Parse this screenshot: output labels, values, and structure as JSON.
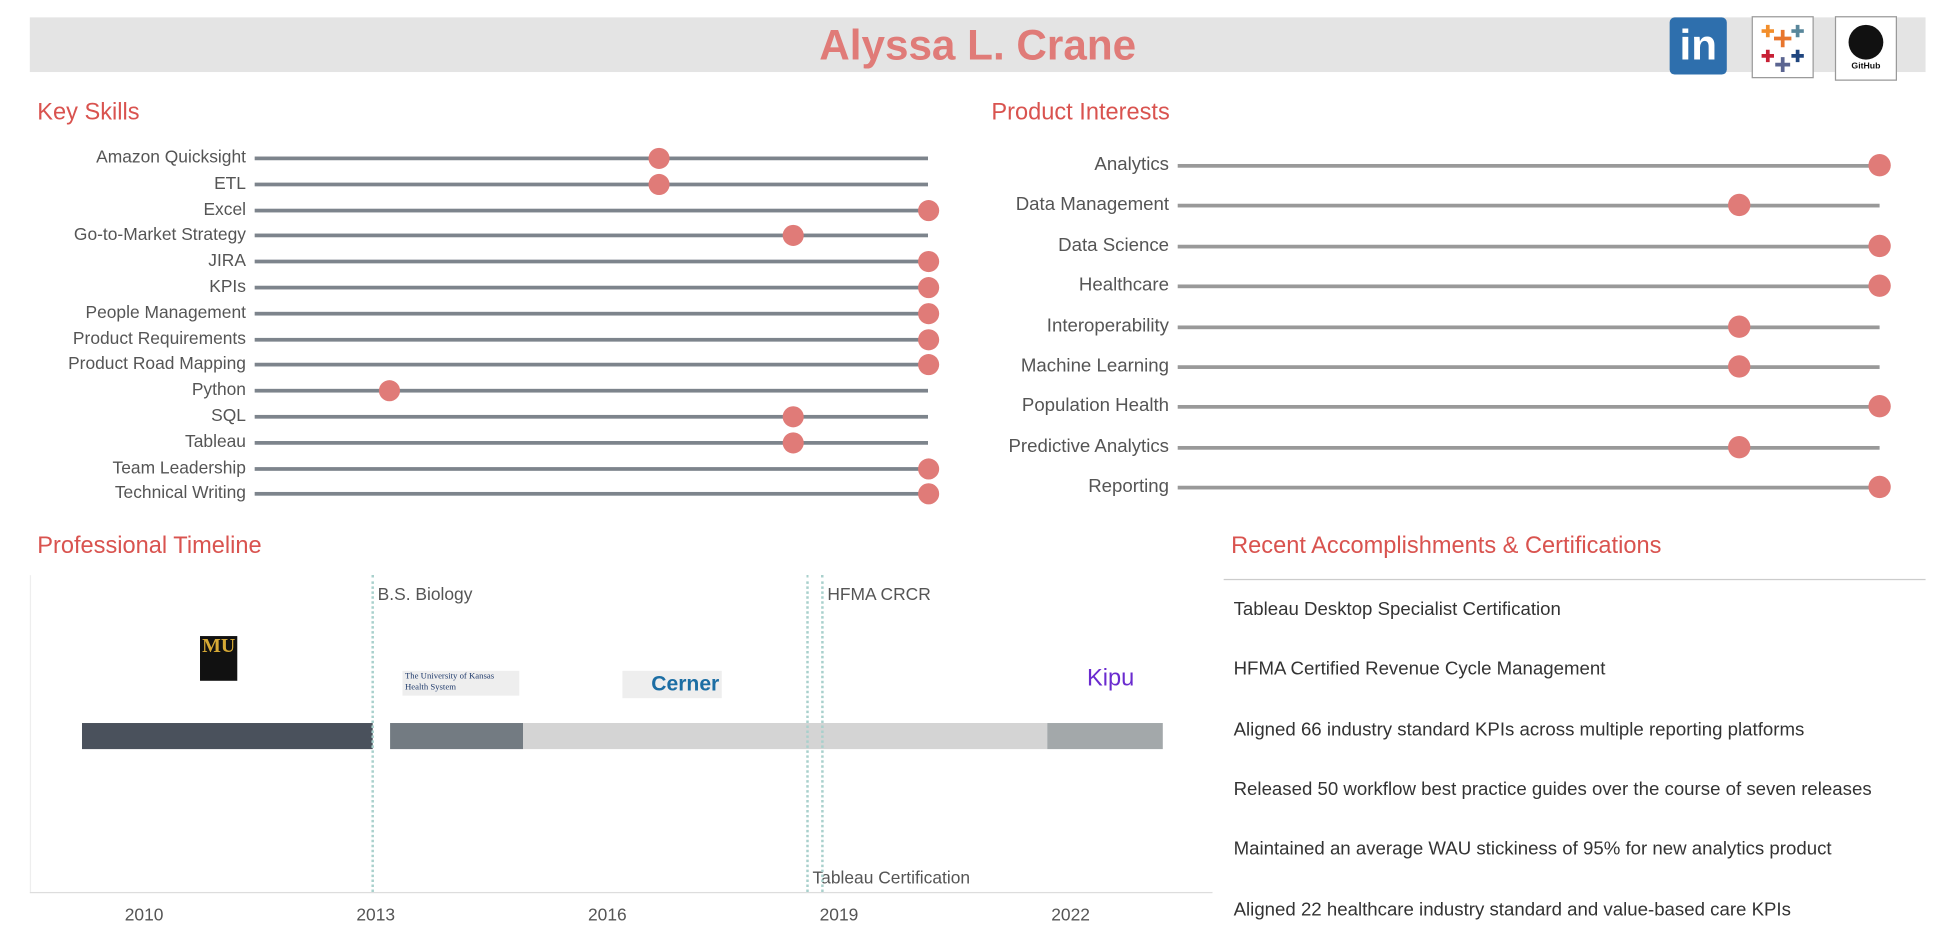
{
  "header": {
    "name": "Alyssa L. Crane",
    "icons": [
      "linkedin-icon",
      "tableau-icon",
      "github-icon"
    ],
    "linkedin_text": "in",
    "github_text": "GitHub"
  },
  "colors": {
    "accent": "#e07b78",
    "section_title": "#d9534f",
    "banner": "#e4e4e4"
  },
  "chart_data": [
    {
      "type": "scatter",
      "title": "Key Skills",
      "xlim": [
        0,
        5
      ],
      "categories": [
        "Amazon Quicksight",
        "ETL",
        "Excel",
        "Go-to-Market Strategy",
        "JIRA",
        "KPIs",
        "People Management",
        "Product Requirements",
        "Product Road Mapping",
        "Python",
        "SQL",
        "Tableau",
        "Team Leadership",
        "Technical Writing"
      ],
      "values": [
        3,
        3,
        5,
        4,
        5,
        5,
        5,
        5,
        5,
        1,
        4,
        4,
        5,
        5
      ]
    },
    {
      "type": "scatter",
      "title": "Product Interests",
      "xlim": [
        0,
        5
      ],
      "categories": [
        "Analytics",
        "Data Management",
        "Data Science",
        "Healthcare",
        "Interoperability",
        "Machine Learning",
        "Population Health",
        "Predictive Analytics",
        "Reporting"
      ],
      "values": [
        5,
        4,
        5,
        5,
        4,
        4,
        5,
        4,
        5
      ]
    },
    {
      "type": "bar",
      "title": "Professional Timeline",
      "xlim": [
        2008.5,
        2024
      ],
      "x_ticks": [
        "2010",
        "2013",
        "2016",
        "2019",
        "2022"
      ],
      "segments": [
        {
          "logo": "University of Missouri",
          "logo_text": "MU",
          "start": 2009.2,
          "end": 2013.0,
          "color": "#4a515c"
        },
        {
          "logo": "The University of Kansas Health System",
          "logo_text": "The University of Kansas Health System",
          "start": 2013.2,
          "end": 2014.9,
          "color": "#737b82"
        },
        {
          "logo": "Cerner",
          "logo_text": "Cerner",
          "start": 2014.9,
          "end": 2021.7,
          "color": "#d4d4d4"
        },
        {
          "logo": "Kipu",
          "logo_text": "Kipu",
          "start": 2021.7,
          "end": 2023.2,
          "color": "#a3a8aa"
        }
      ],
      "milestones": [
        {
          "label": "B.S. Biology",
          "date": 2013.0
        },
        {
          "label": "Tableau Certification",
          "date": 2018.6
        },
        {
          "label": "HFMA CRCR",
          "date": 2018.8
        }
      ]
    }
  ],
  "accomplishments": {
    "title": "Recent Accomplishments & Certifications",
    "items": [
      "Tableau Desktop Specialist Certification",
      "HFMA Certified Revenue Cycle Management",
      "Aligned 66 industry standard KPIs across multiple reporting platforms",
      "Released 50 workflow best practice guides over the course of seven releases",
      "Maintained an average WAU stickiness of 95% for new analytics product",
      "Aligned 22 healthcare industry standard and value-based care KPIs"
    ]
  }
}
